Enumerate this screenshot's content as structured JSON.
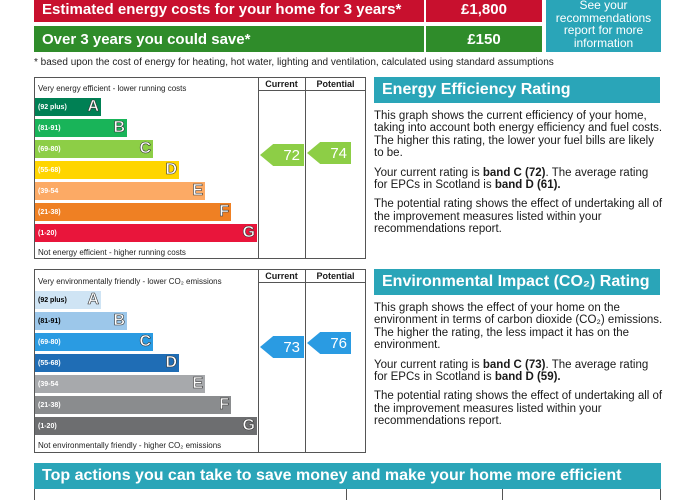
{
  "costs": {
    "estimated_label": "Estimated energy costs for your home for 3 years*",
    "estimated_value": "£1,800",
    "save_label": "Over 3 years you could save*",
    "save_value": "£150",
    "info_line1": "See your",
    "info_line2": "recommendations",
    "info_line3": "report for more",
    "info_line4": "information",
    "footnote": "* based upon the cost of energy for heating, hot water, lighting and ventilation, calculated using standard assumptions",
    "colors": {
      "red": "#c8102e",
      "green": "#2f8c2a",
      "teal": "#2aa5b8"
    }
  },
  "energy_chart": {
    "col_current": "Current",
    "col_potential": "Potential",
    "top_caption": "Very energy efficient - lower running costs",
    "bottom_caption": "Not energy efficient - higher running costs",
    "bands": [
      {
        "range": "(92 plus)",
        "letter": "A",
        "color": "#008054"
      },
      {
        "range": "(81-91)",
        "letter": "B",
        "color": "#19b459"
      },
      {
        "range": "(69-80)",
        "letter": "C",
        "color": "#8dce46"
      },
      {
        "range": "(55-68)",
        "letter": "D",
        "color": "#ffd500"
      },
      {
        "range": "(39-54",
        "letter": "E",
        "color": "#fcaa65"
      },
      {
        "range": "(21-38)",
        "letter": "F",
        "color": "#ef8023"
      },
      {
        "range": "(1-20)",
        "letter": "G",
        "color": "#e9153b"
      }
    ],
    "current_value": "72",
    "potential_value": "74",
    "arrow_color": "#8dce46"
  },
  "env_chart": {
    "col_current": "Current",
    "col_potential": "Potential",
    "top_caption": "Very environmentally friendly - lower CO₂ emissions",
    "bottom_caption": "Not environmentally friendly - higher CO₂ emissions",
    "bands": [
      {
        "range": "(92 plus)",
        "letter": "A",
        "color": "#cfe4f4"
      },
      {
        "range": "(81-91)",
        "letter": "B",
        "color": "#9cc7ea"
      },
      {
        "range": "(69-80)",
        "letter": "C",
        "color": "#2a9be2"
      },
      {
        "range": "(55-68)",
        "letter": "D",
        "color": "#1f6db5"
      },
      {
        "range": "(39-54",
        "letter": "E",
        "color": "#a7a9ac"
      },
      {
        "range": "(21-38)",
        "letter": "F",
        "color": "#8a8c8e"
      },
      {
        "range": "(1-20)",
        "letter": "G",
        "color": "#6d6e70"
      }
    ],
    "current_value": "73",
    "potential_value": "76",
    "arrow_color": "#2a9be2"
  },
  "energy_panel": {
    "title": "Energy Efficiency Rating",
    "p1": "This graph shows the current efficiency of your home, taking into account both energy efficiency and fuel costs. The higher this rating, the lower your fuel bills are likely to be.",
    "p2_pre": "Your current rating is ",
    "p2_b1": "band C (72)",
    "p2_mid": ". The average rating for EPCs in Scotland is ",
    "p2_b2": "band D (61).",
    "p3": "The potential rating shows the effect of undertaking all of the improvement measures listed within your recommendations report."
  },
  "env_panel": {
    "title": "Environmental Impact (CO₂) Rating",
    "p1": "This graph shows the effect of your home on the environment in terms of carbon dioxide (CO₂) emissions. The higher the rating, the less impact it has on the environment.",
    "p2_pre": "Your current rating is ",
    "p2_b1": "band C (73)",
    "p2_mid": ". The average rating for EPCs in Scotland is ",
    "p2_b2": "band D (59).",
    "p3": "The potential rating shows the effect of undertaking all of the improvement measures listed within your recommendations report."
  },
  "bottom": {
    "title": "Top actions you can take to save money and make your home more efficient"
  }
}
